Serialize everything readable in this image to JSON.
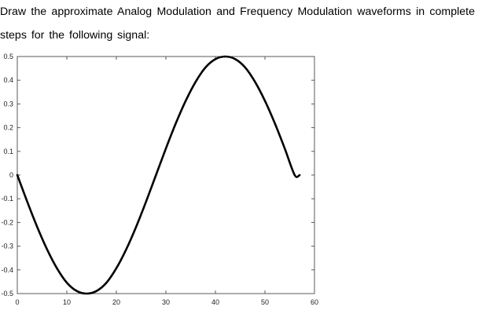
{
  "question": {
    "text": "Draw the approximate Analog Modulation and Frequency Modulation waveforms in complete steps for the following signal:"
  },
  "chart_data": {
    "type": "line",
    "title": "",
    "xlabel": "",
    "ylabel": "",
    "xlim": [
      0,
      60
    ],
    "ylim": [
      -0.5,
      0.5
    ],
    "xticks": [
      0,
      10,
      20,
      30,
      40,
      50,
      60
    ],
    "yticks": [
      0.5,
      0.4,
      0.3,
      0.2,
      0.1,
      0,
      -0.1,
      -0.2,
      -0.3,
      -0.4,
      -0.5
    ],
    "xtick_labels": [
      "0",
      "10",
      "20",
      "30",
      "40",
      "50",
      "60"
    ],
    "ytick_labels": [
      "0.5",
      "0.4",
      "0.3",
      "0.2",
      "0.1",
      "0",
      "-0.1",
      "-0.2",
      "-0.3",
      "-0.4",
      "-0.5"
    ],
    "grid": false,
    "series": [
      {
        "color": "#000000",
        "x": [
          0,
          2,
          4,
          6,
          8,
          10,
          12,
          14,
          16,
          18,
          20,
          22,
          24,
          26,
          28,
          30,
          32,
          34,
          36,
          38,
          40,
          42,
          44,
          46,
          48,
          50,
          52,
          54,
          56,
          57
        ],
        "y": [
          0,
          -0.112,
          -0.218,
          -0.313,
          -0.393,
          -0.454,
          -0.489,
          -0.5,
          -0.489,
          -0.454,
          -0.393,
          -0.313,
          -0.218,
          -0.112,
          0,
          0.112,
          0.218,
          0.313,
          0.393,
          0.454,
          0.489,
          0.5,
          0.489,
          0.454,
          0.393,
          0.313,
          0.218,
          0.112,
          0,
          0
        ]
      }
    ]
  }
}
